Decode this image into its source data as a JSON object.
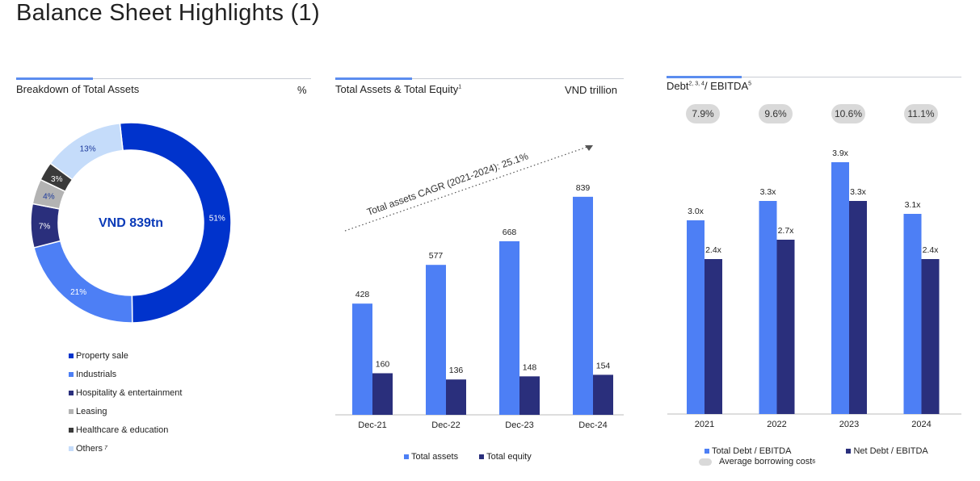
{
  "page": {
    "title": "Balance Sheet Highlights (1)"
  },
  "colors": {
    "dark_blue": "#0033cc",
    "mid_blue": "#4d7ff5",
    "navy": "#2a2f7c",
    "grey": "#b3b3b3",
    "dark_grey": "#3a3a3a",
    "light_blue": "#c5dcfa",
    "pill": "#d9d9d9"
  },
  "panel1": {
    "title": "Breakdown of Total Assets",
    "unit": "%",
    "center_label": "VND 839tn"
  },
  "panel2": {
    "title": "Total Assets & Total Equity",
    "title_sup": "1",
    "unit": "VND trillion",
    "cagr_text": "Total assets CAGR (2021-2024): 25.1%"
  },
  "panel3": {
    "title": "Debt",
    "title_sup": "2, 3, 4",
    "title_rest": "/ EBITDA",
    "title_sup2": "5",
    "legend_extra": "Average borrowing cost",
    "legend_extra_sup": "6"
  },
  "chart_data": [
    {
      "type": "pie",
      "title": "Breakdown of Total Assets",
      "unit": "%",
      "center_label": "VND 839tn",
      "slices": [
        {
          "label": "Property sale",
          "value": 51,
          "display": "51%",
          "color": "#0033cc"
        },
        {
          "label": "Industrials",
          "value": 21,
          "display": "21%",
          "color": "#4d7ff5"
        },
        {
          "label": "Hospitality & entertainment",
          "value": 7,
          "display": "7%",
          "color": "#2a2f7c"
        },
        {
          "label": "Leasing",
          "value": 4,
          "display": "4%",
          "color": "#b3b3b3"
        },
        {
          "label": "Healthcare & education",
          "value": 3,
          "display": "3%",
          "color": "#3a3a3a"
        },
        {
          "label": "Others",
          "label_sup": "7",
          "value": 13,
          "display": "13%",
          "color": "#c5dcfa"
        }
      ]
    },
    {
      "type": "bar",
      "title": "Total Assets & Total Equity",
      "unit": "VND trillion",
      "categories": [
        "Dec-21",
        "Dec-22",
        "Dec-23",
        "Dec-24"
      ],
      "series": [
        {
          "name": "Total assets",
          "values": [
            428,
            577,
            668,
            839
          ],
          "labels": [
            "428",
            "577",
            "668",
            "839"
          ],
          "color": "#4d7ff5"
        },
        {
          "name": "Total equity",
          "values": [
            160,
            136,
            148,
            154
          ],
          "labels": [
            "160",
            "136",
            "148",
            "154"
          ],
          "color": "#2a2f7c"
        }
      ],
      "annotation": "Total assets CAGR (2021-2024): 25.1%"
    },
    {
      "type": "bar",
      "title": "Debt / EBITDA",
      "categories": [
        "2021",
        "2022",
        "2023",
        "2024"
      ],
      "series": [
        {
          "name": "Total Debt / EBITDA",
          "values": [
            3.0,
            3.3,
            3.9,
            3.1
          ],
          "labels": [
            "3.0x",
            "3.3x",
            "3.9x",
            "3.1x"
          ],
          "color": "#4d7ff5"
        },
        {
          "name": "Net Debt / EBITDA",
          "values": [
            2.4,
            2.7,
            3.3,
            2.4
          ],
          "labels": [
            "2.4x",
            "2.7x",
            "3.3x",
            "2.4x"
          ],
          "color": "#2a2f7c"
        }
      ],
      "average_borrowing_cost": [
        "7.9%",
        "9.6%",
        "10.6%",
        "11.1%"
      ]
    }
  ]
}
